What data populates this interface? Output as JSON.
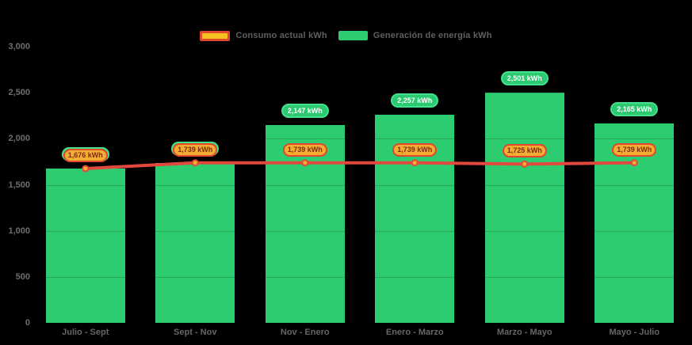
{
  "colors": {
    "background": "#000000",
    "axis_text": "#6e6e6e",
    "legend_text": "#5f5f5f"
  },
  "legend": {
    "items": [
      {
        "label": "Consumo actual kWh",
        "swatch": "red-bordered-yellow-rect"
      },
      {
        "label": "Generación de energía kWh",
        "swatch": "green-rect"
      }
    ]
  },
  "chart_data": {
    "type": "combo-bar-line",
    "categories": [
      "Julio - Sept",
      "Sept - Nov",
      "Nov - Enero",
      "Enero - Marzo",
      "Marzo - Mayo",
      "Mayo - Julio"
    ],
    "series": [
      {
        "name": "Consumo actual kWh",
        "type": "line",
        "color": "#e2483d",
        "point_fill": "#f9ae2b",
        "values": [
          1676,
          1739,
          1739,
          1739,
          1725,
          1739
        ],
        "labels": [
          "1,676 kWh",
          "1,739 kWh",
          "1,739 kWh",
          "1,739 kWh",
          "1,725 kWh",
          "1,739 kWh"
        ],
        "label_bg": "#f3ad33",
        "label_border": "#e2472e",
        "label_text_color": "#7d2a12"
      },
      {
        "name": "Generación de energía kWh",
        "type": "bar",
        "color": "#2ecc71",
        "values": [
          1676,
          1739,
          2147,
          2257,
          2501,
          2165
        ],
        "labels": [
          "1,676 kWh",
          "1,739 kWh",
          "2,147 kWh",
          "2,257 kWh",
          "2,501 kWh",
          "2,165 kWh"
        ],
        "label_bg": "#2bca70",
        "label_border": "#44e18e",
        "label_text_color": "#ffffff"
      }
    ],
    "xlabel": "",
    "ylabel": "",
    "ylim": [
      0,
      3000
    ],
    "yticks": {
      "values": [
        0,
        500,
        1000,
        1500,
        2000,
        2500,
        3000
      ],
      "labels": [
        "0",
        "500",
        "1,000",
        "1,500",
        "2,000",
        "2,500",
        "3,000"
      ]
    },
    "grid": "subtle-horizontal",
    "legend_position": "top-center"
  }
}
